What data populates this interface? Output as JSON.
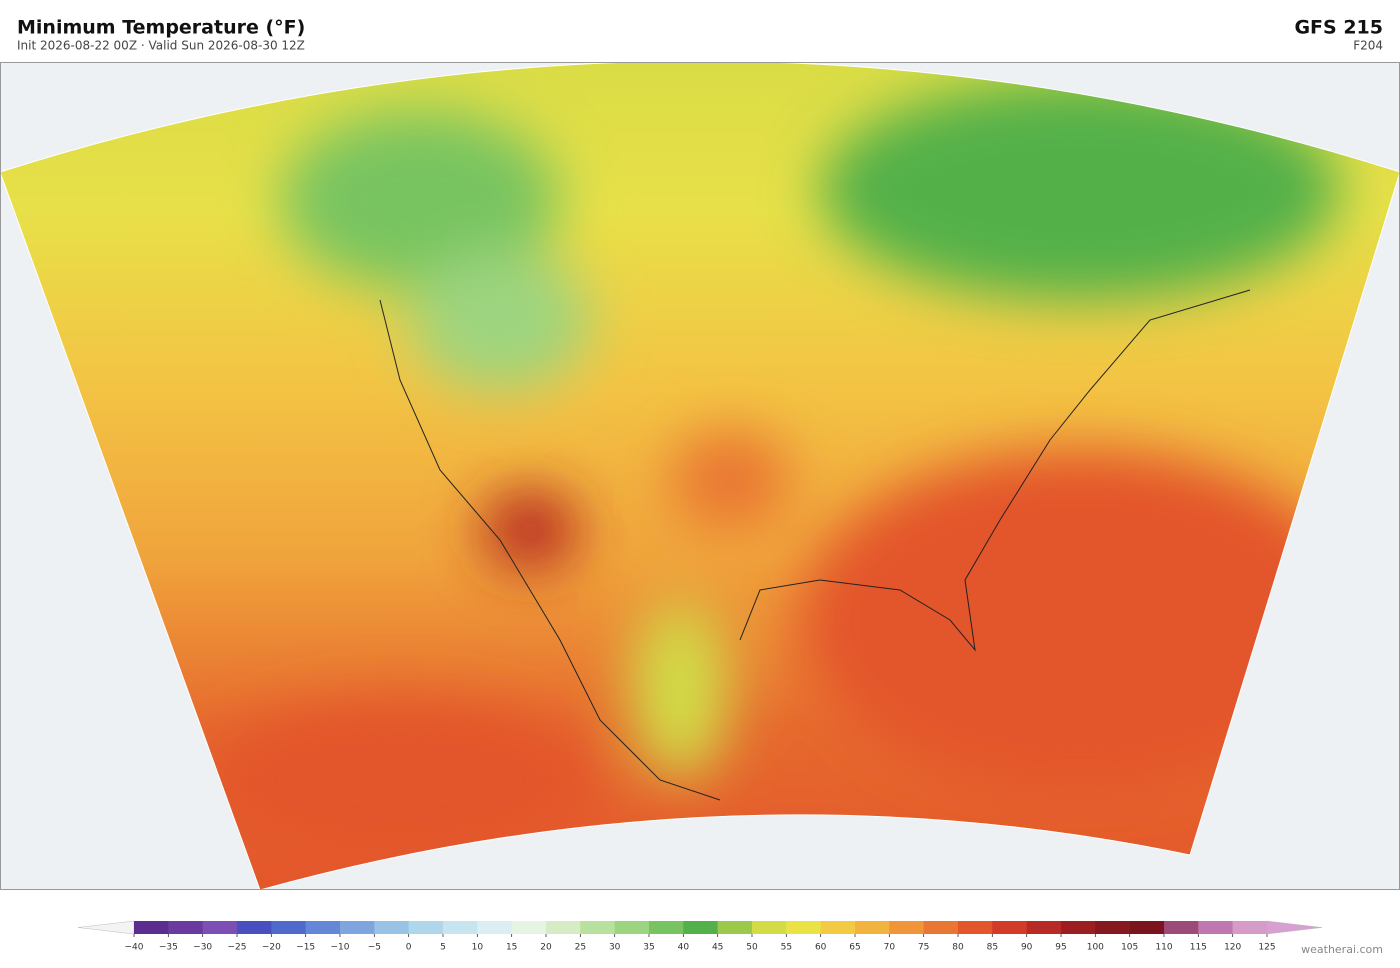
{
  "header": {
    "title": "Minimum Temperature  (°F)",
    "subtitle": "Init 2026-08-22 00Z  ·  Valid Sun 2026-08-30 12Z",
    "model": "GFS  215",
    "forecast_hour": "F204"
  },
  "colorbar": {
    "ticks": [
      {
        "value": -40,
        "label": "−40"
      },
      {
        "value": -35,
        "label": "−35"
      },
      {
        "value": -30,
        "label": "−30"
      },
      {
        "value": -25,
        "label": "−25"
      },
      {
        "value": -20,
        "label": "−20"
      },
      {
        "value": -15,
        "label": "−15"
      },
      {
        "value": -10,
        "label": "−10"
      },
      {
        "value": -5,
        "label": "−5"
      },
      0,
      5,
      10,
      15,
      20,
      25,
      30,
      35,
      40,
      45,
      50,
      55,
      60,
      65,
      70,
      75,
      80,
      85,
      90,
      95,
      100,
      105,
      110,
      115,
      120,
      125
    ],
    "colors": [
      "#5b2d8e",
      "#6a3a9e",
      "#7b4fb5",
      "#4a4fc0",
      "#4f69cc",
      "#6388d8",
      "#7ea6de",
      "#98c2e6",
      "#b0d6ec",
      "#c6e5f0",
      "#dbeff3",
      "#e6f4e4",
      "#d5ecc6",
      "#b8e09e",
      "#9dd47f",
      "#78c461",
      "#53b04a",
      "#9cc94a",
      "#d1dc46",
      "#ebe246",
      "#f3ca44",
      "#f2b33f",
      "#ee9638",
      "#e97632",
      "#e3552b",
      "#d23b27",
      "#b82a24",
      "#9c1e20",
      "#861820",
      "#7a1520",
      "#9c4a7a",
      "#c079b0",
      "#d59cc8"
    ],
    "under_color": "#f4f4f6",
    "over_color": "#d8a0d0"
  },
  "credit": "weatherai.com"
}
